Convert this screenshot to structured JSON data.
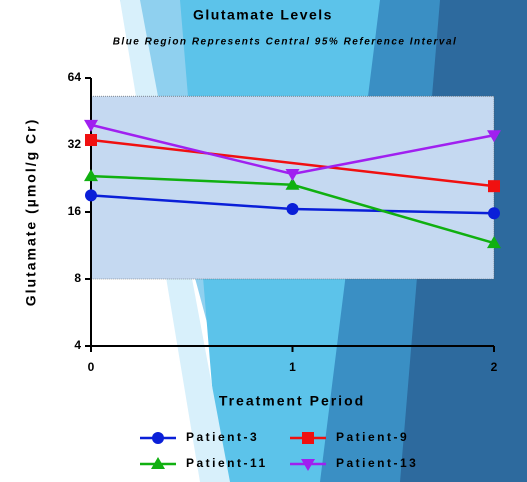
{
  "chart_data": {
    "type": "line",
    "title": "Glutamate Levels",
    "subtitle": "Blue Region Represents Central 95% Reference Interval",
    "x_label": "Treatment Period",
    "y_label": "Glutamate (µmol/g Cr)",
    "x": [
      0,
      1,
      2
    ],
    "xlim": [
      0,
      2
    ],
    "xticks": [
      0,
      1,
      2
    ],
    "ylim": [
      4,
      64
    ],
    "yticks": [
      4,
      8,
      16,
      32,
      64
    ],
    "log_scale_y": 2,
    "reference_band": [
      8,
      53
    ],
    "band_color": "#c5d9f1",
    "series": [
      {
        "name": "Patient-3",
        "color": "#0a1fd8",
        "marker": "circle",
        "values": [
          19,
          16.5,
          15.8
        ]
      },
      {
        "name": "Patient-9",
        "color": "#f01010",
        "marker": "square",
        "values": [
          33.7,
          null,
          20.9
        ]
      },
      {
        "name": "Patient-11",
        "color": "#10b010",
        "marker": "triangle-up",
        "values": [
          23.2,
          21.2,
          11.6
        ]
      },
      {
        "name": "Patient-13",
        "color": "#a020f0",
        "marker": "triangle-down",
        "values": [
          39.4,
          23.7,
          35.4
        ]
      }
    ]
  }
}
